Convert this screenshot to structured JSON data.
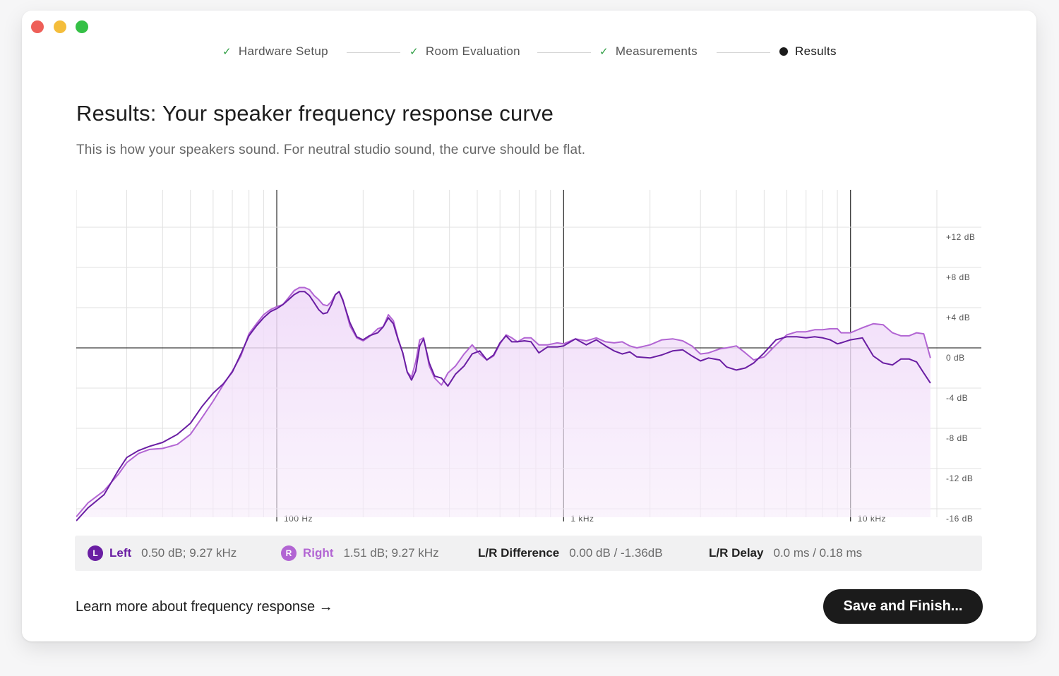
{
  "steps": [
    {
      "label": "Hardware Setup",
      "status": "done"
    },
    {
      "label": "Room Evaluation",
      "status": "done"
    },
    {
      "label": "Measurements",
      "status": "done"
    },
    {
      "label": "Results",
      "status": "current"
    }
  ],
  "title": "Results: Your speaker frequency response curve",
  "subtitle": "This is how your speakers sound. For neutral studio sound, the curve should be flat.",
  "colors": {
    "left": "#6a1ea3",
    "right": "#b265d3",
    "fill": "#f5e8fb",
    "done_check": "#2f9e44"
  },
  "chart_data": {
    "type": "line",
    "x_scale": "log",
    "xlim": [
      20,
      20000
    ],
    "ylim": [
      -16,
      16
    ],
    "x_ticks": [
      {
        "value": 100,
        "label": "100 Hz"
      },
      {
        "value": 1000,
        "label": "1 kHz"
      },
      {
        "value": 10000,
        "label": "10 kHz"
      }
    ],
    "y_ticks": [
      {
        "value": 12,
        "label": "+12 dB"
      },
      {
        "value": 8,
        "label": "+8 dB"
      },
      {
        "value": 4,
        "label": "+4 dB"
      },
      {
        "value": 0,
        "label": "0 dB"
      },
      {
        "value": -4,
        "label": "-4 dB"
      },
      {
        "value": -8,
        "label": "-8 dB"
      },
      {
        "value": -12,
        "label": "-12 dB"
      },
      {
        "value": -16,
        "label": "-16 dB"
      }
    ],
    "grid": true,
    "series": [
      {
        "name": "Left",
        "points": [
          [
            20,
            -17.2
          ],
          [
            22,
            -15.9
          ],
          [
            25,
            -14.6
          ],
          [
            28,
            -12.2
          ],
          [
            30,
            -10.9
          ],
          [
            33,
            -10.2
          ],
          [
            36,
            -9.8
          ],
          [
            40,
            -9.4
          ],
          [
            45,
            -8.6
          ],
          [
            50,
            -7.5
          ],
          [
            55,
            -5.8
          ],
          [
            60,
            -4.5
          ],
          [
            65,
            -3.6
          ],
          [
            70,
            -2.4
          ],
          [
            75,
            -0.6
          ],
          [
            80,
            1.2
          ],
          [
            85,
            2.2
          ],
          [
            90,
            3.0
          ],
          [
            95,
            3.6
          ],
          [
            100,
            3.9
          ],
          [
            105,
            4.3
          ],
          [
            110,
            4.8
          ],
          [
            115,
            5.3
          ],
          [
            120,
            5.6
          ],
          [
            125,
            5.6
          ],
          [
            130,
            5.2
          ],
          [
            135,
            4.5
          ],
          [
            140,
            3.8
          ],
          [
            145,
            3.4
          ],
          [
            150,
            3.5
          ],
          [
            155,
            4.3
          ],
          [
            160,
            5.3
          ],
          [
            165,
            5.6
          ],
          [
            170,
            4.7
          ],
          [
            180,
            2.5
          ],
          [
            190,
            1.1
          ],
          [
            200,
            0.8
          ],
          [
            210,
            1.2
          ],
          [
            225,
            1.5
          ],
          [
            235,
            2.1
          ],
          [
            245,
            3.0
          ],
          [
            255,
            2.4
          ],
          [
            265,
            0.8
          ],
          [
            275,
            -0.5
          ],
          [
            285,
            -2.4
          ],
          [
            295,
            -3.2
          ],
          [
            305,
            -2.3
          ],
          [
            315,
            0.2
          ],
          [
            325,
            0.9
          ],
          [
            340,
            -1.5
          ],
          [
            355,
            -2.8
          ],
          [
            375,
            -3.0
          ],
          [
            395,
            -3.8
          ],
          [
            420,
            -2.6
          ],
          [
            450,
            -1.8
          ],
          [
            480,
            -0.6
          ],
          [
            510,
            -0.3
          ],
          [
            540,
            -1.2
          ],
          [
            570,
            -0.7
          ],
          [
            600,
            0.5
          ],
          [
            630,
            1.2
          ],
          [
            660,
            0.6
          ],
          [
            690,
            0.6
          ],
          [
            730,
            0.7
          ],
          [
            770,
            0.6
          ],
          [
            820,
            -0.5
          ],
          [
            880,
            0.1
          ],
          [
            950,
            0.1
          ],
          [
            1000,
            0.2
          ],
          [
            1100,
            0.9
          ],
          [
            1200,
            0.3
          ],
          [
            1300,
            0.8
          ],
          [
            1400,
            0.2
          ],
          [
            1500,
            -0.3
          ],
          [
            1600,
            -0.6
          ],
          [
            1700,
            -0.4
          ],
          [
            1800,
            -0.9
          ],
          [
            2000,
            -1.0
          ],
          [
            2200,
            -0.7
          ],
          [
            2400,
            -0.3
          ],
          [
            2600,
            -0.2
          ],
          [
            2800,
            -0.8
          ],
          [
            3000,
            -1.3
          ],
          [
            3200,
            -1.0
          ],
          [
            3500,
            -1.2
          ],
          [
            3700,
            -1.9
          ],
          [
            4000,
            -2.2
          ],
          [
            4300,
            -2.0
          ],
          [
            4600,
            -1.5
          ],
          [
            5000,
            -0.5
          ],
          [
            5500,
            0.8
          ],
          [
            6000,
            1.1
          ],
          [
            6500,
            1.1
          ],
          [
            7000,
            1.0
          ],
          [
            7500,
            1.1
          ],
          [
            8000,
            1.0
          ],
          [
            8500,
            0.8
          ],
          [
            9000,
            0.4
          ],
          [
            9270,
            0.5
          ],
          [
            10000,
            0.8
          ],
          [
            11000,
            1.0
          ],
          [
            12000,
            -0.8
          ],
          [
            13000,
            -1.5
          ],
          [
            14000,
            -1.7
          ],
          [
            15000,
            -1.1
          ],
          [
            16000,
            -1.1
          ],
          [
            17000,
            -1.4
          ],
          [
            18000,
            -2.5
          ],
          [
            19000,
            -3.5
          ]
        ]
      },
      {
        "name": "Right",
        "points": [
          [
            20,
            -16.8
          ],
          [
            22,
            -15.4
          ],
          [
            25,
            -14.2
          ],
          [
            28,
            -12.6
          ],
          [
            30,
            -11.4
          ],
          [
            33,
            -10.5
          ],
          [
            36,
            -10.1
          ],
          [
            40,
            -10.0
          ],
          [
            45,
            -9.6
          ],
          [
            50,
            -8.6
          ],
          [
            55,
            -6.9
          ],
          [
            60,
            -5.3
          ],
          [
            65,
            -3.7
          ],
          [
            70,
            -2.3
          ],
          [
            75,
            -0.8
          ],
          [
            80,
            1.4
          ],
          [
            85,
            2.4
          ],
          [
            90,
            3.3
          ],
          [
            95,
            3.8
          ],
          [
            100,
            4.1
          ],
          [
            105,
            4.3
          ],
          [
            110,
            5.0
          ],
          [
            115,
            5.7
          ],
          [
            120,
            6.0
          ],
          [
            125,
            6.0
          ],
          [
            130,
            5.8
          ],
          [
            135,
            5.2
          ],
          [
            140,
            4.8
          ],
          [
            145,
            4.3
          ],
          [
            150,
            4.2
          ],
          [
            155,
            4.6
          ],
          [
            160,
            5.3
          ],
          [
            165,
            5.6
          ],
          [
            170,
            4.8
          ],
          [
            180,
            2.2
          ],
          [
            190,
            1.0
          ],
          [
            200,
            0.7
          ],
          [
            210,
            1.1
          ],
          [
            225,
            1.9
          ],
          [
            235,
            2.1
          ],
          [
            245,
            3.3
          ],
          [
            255,
            2.7
          ],
          [
            265,
            0.9
          ],
          [
            275,
            -0.5
          ],
          [
            285,
            -2.4
          ],
          [
            295,
            -2.9
          ],
          [
            305,
            -1.4
          ],
          [
            315,
            0.8
          ],
          [
            325,
            1.0
          ],
          [
            340,
            -1.8
          ],
          [
            355,
            -3.0
          ],
          [
            375,
            -3.7
          ],
          [
            395,
            -2.5
          ],
          [
            420,
            -1.8
          ],
          [
            450,
            -0.6
          ],
          [
            480,
            0.3
          ],
          [
            510,
            -0.6
          ],
          [
            540,
            -1.2
          ],
          [
            570,
            -0.8
          ],
          [
            600,
            0.4
          ],
          [
            630,
            1.3
          ],
          [
            660,
            1.0
          ],
          [
            690,
            0.6
          ],
          [
            730,
            1.0
          ],
          [
            770,
            1.0
          ],
          [
            820,
            0.3
          ],
          [
            880,
            0.3
          ],
          [
            950,
            0.5
          ],
          [
            1000,
            0.4
          ],
          [
            1100,
            0.9
          ],
          [
            1200,
            0.7
          ],
          [
            1300,
            1.0
          ],
          [
            1400,
            0.6
          ],
          [
            1500,
            0.5
          ],
          [
            1600,
            0.6
          ],
          [
            1700,
            0.2
          ],
          [
            1800,
            0.0
          ],
          [
            2000,
            0.3
          ],
          [
            2200,
            0.8
          ],
          [
            2400,
            0.9
          ],
          [
            2600,
            0.7
          ],
          [
            2800,
            0.2
          ],
          [
            3000,
            -0.6
          ],
          [
            3200,
            -0.5
          ],
          [
            3500,
            -0.1
          ],
          [
            3700,
            0.0
          ],
          [
            4000,
            0.2
          ],
          [
            4300,
            -0.5
          ],
          [
            4600,
            -1.2
          ],
          [
            5000,
            -0.9
          ],
          [
            5500,
            0.3
          ],
          [
            6000,
            1.3
          ],
          [
            6500,
            1.6
          ],
          [
            7000,
            1.6
          ],
          [
            7500,
            1.8
          ],
          [
            8000,
            1.8
          ],
          [
            8500,
            1.9
          ],
          [
            9000,
            1.9
          ],
          [
            9270,
            1.5
          ],
          [
            10000,
            1.5
          ],
          [
            11000,
            2.0
          ],
          [
            12000,
            2.4
          ],
          [
            13000,
            2.3
          ],
          [
            14000,
            1.5
          ],
          [
            15000,
            1.2
          ],
          [
            16000,
            1.2
          ],
          [
            17000,
            1.5
          ],
          [
            18000,
            1.4
          ],
          [
            19000,
            -1.0
          ]
        ]
      }
    ]
  },
  "stats": {
    "left": {
      "badge": "L",
      "label": "Left",
      "value": "0.50 dB; 9.27 kHz"
    },
    "right": {
      "badge": "R",
      "label": "Right",
      "value": "1.51 dB; 9.27 kHz"
    },
    "difference": {
      "label": "L/R Difference",
      "value": "0.00 dB / -1.36dB"
    },
    "delay": {
      "label": "L/R Delay",
      "value": "0.0 ms / 0.18 ms"
    }
  },
  "learn_link": "Learn more about frequency response →",
  "save_button": "Save and Finish..."
}
